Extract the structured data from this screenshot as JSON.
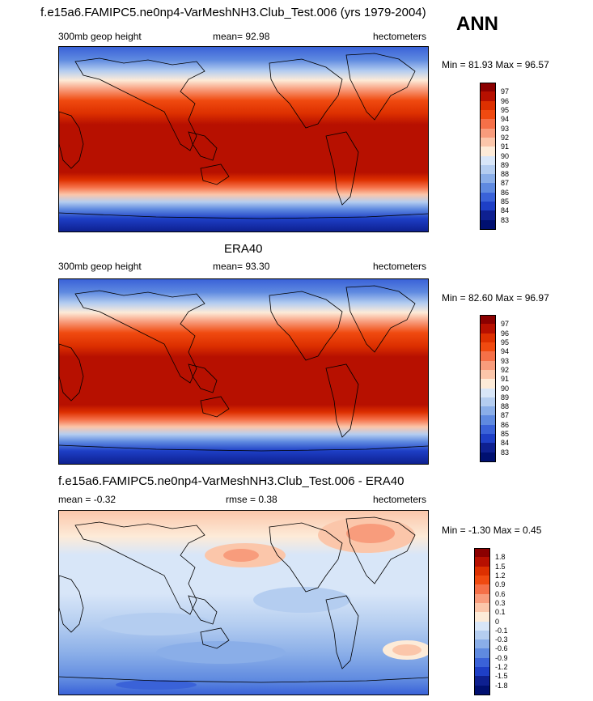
{
  "header": {
    "title": "f.e15a6.FAMIPC5.ne0np4-VarMeshNH3.Club_Test.006 (yrs 1979-2004)",
    "season": "ANN"
  },
  "panels": [
    {
      "title": "",
      "left_label": "300mb geop height",
      "center_label": "mean=  92.98",
      "right_label": "hectometers",
      "minmax": "Min =  81.93 Max =  96.57",
      "colorbar": {
        "labels": [
          "97",
          "96",
          "95",
          "94",
          "93",
          "92",
          "91",
          "90",
          "89",
          "88",
          "87",
          "86",
          "85",
          "84",
          "83"
        ],
        "colors": [
          "#8b0000",
          "#b71000",
          "#dd3000",
          "#f04a10",
          "#f57048",
          "#f89c7c",
          "#fbc6aa",
          "#fdebd8",
          "#d8e6f8",
          "#b4cdf0",
          "#8aaee8",
          "#5f8ae0",
          "#3a62d8",
          "#1e3fc6",
          "#0e2090",
          "#001070"
        ]
      }
    },
    {
      "title": "ERA40",
      "left_label": "300mb geop height",
      "center_label": "mean=  93.30",
      "right_label": "hectometers",
      "minmax": "Min =  82.60 Max =  96.97",
      "colorbar": {
        "labels": [
          "97",
          "96",
          "95",
          "94",
          "93",
          "92",
          "91",
          "90",
          "89",
          "88",
          "87",
          "86",
          "85",
          "84",
          "83"
        ],
        "colors": [
          "#8b0000",
          "#b71000",
          "#dd3000",
          "#f04a10",
          "#f57048",
          "#f89c7c",
          "#fbc6aa",
          "#fdebd8",
          "#d8e6f8",
          "#b4cdf0",
          "#8aaee8",
          "#5f8ae0",
          "#3a62d8",
          "#1e3fc6",
          "#0e2090",
          "#001070"
        ]
      }
    },
    {
      "title": "f.e15a6.FAMIPC5.ne0np4-VarMeshNH3.Club_Test.006 - ERA40",
      "left_label": "mean =  -0.32",
      "center_label": "rmse =   0.38",
      "right_label": "hectometers",
      "minmax": "Min =  -1.30 Max =   0.45",
      "colorbar": {
        "labels": [
          "1.8",
          "1.5",
          "1.2",
          "0.9",
          "0.6",
          "0.3",
          "0.1",
          "0",
          "-0.1",
          "-0.3",
          "-0.6",
          "-0.9",
          "-1.2",
          "-1.5",
          "-1.8"
        ],
        "colors": [
          "#8b0000",
          "#b71000",
          "#dd3000",
          "#f04a10",
          "#f57048",
          "#f89c7c",
          "#fbc6aa",
          "#fdebd8",
          "#d8e6f8",
          "#b4cdf0",
          "#8aaee8",
          "#5f8ae0",
          "#3a62d8",
          "#1e3fc6",
          "#0e2090",
          "#001070"
        ]
      }
    }
  ]
}
